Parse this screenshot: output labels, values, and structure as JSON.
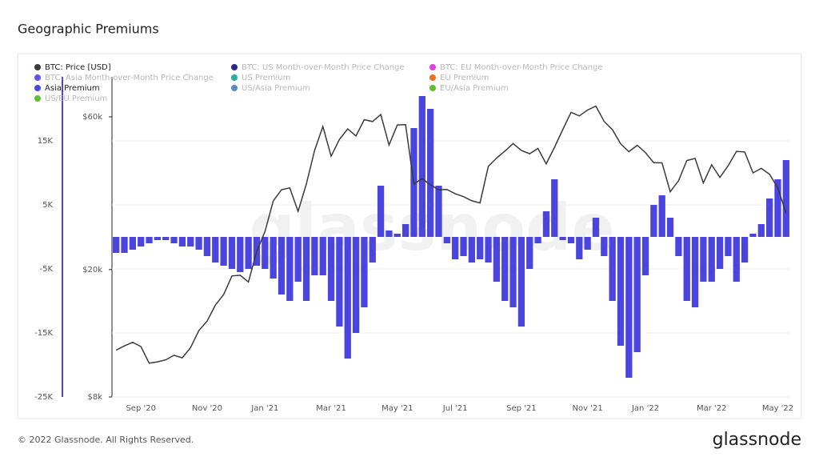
{
  "title": "Geographic Premiums",
  "footer": "© 2022 Glassnode. All Rights Reserved.",
  "logo": "glassnode",
  "watermark": "glassnode",
  "chart_data": {
    "type": "combo",
    "categories": [
      null,
      null,
      null,
      "Sep '20",
      null,
      null,
      null,
      null,
      null,
      null,
      null,
      "Nov '20",
      null,
      null,
      null,
      null,
      null,
      null,
      "Jan '21",
      null,
      null,
      null,
      null,
      null,
      null,
      null,
      "Mar '21",
      null,
      null,
      null,
      null,
      null,
      null,
      null,
      "May '21",
      null,
      null,
      null,
      null,
      null,
      null,
      "Jul '21",
      null,
      null,
      null,
      null,
      null,
      null,
      null,
      "Sep '21",
      null,
      null,
      null,
      null,
      null,
      null,
      null,
      "Nov '21",
      null,
      null,
      null,
      null,
      null,
      null,
      "Jan '22",
      null,
      null,
      null,
      null,
      null,
      null,
      null,
      "Mar '22",
      null,
      null,
      null,
      null,
      null,
      null,
      null,
      "May '22",
      null
    ],
    "ylim": [
      -25000,
      25000
    ],
    "yticks": [
      {
        "value": -25000,
        "label": "-25K"
      },
      {
        "value": -15000,
        "label": "-15K"
      },
      {
        "value": -5000,
        "label": "-5K"
      },
      {
        "value": 5000,
        "label": "5K"
      },
      {
        "value": 15000,
        "label": "15K"
      }
    ],
    "y2lim": [
      8000,
      80000
    ],
    "y2scale": "log",
    "y2ticks": [
      {
        "value": 8000,
        "label": "$8k"
      },
      {
        "value": 20000,
        "label": "$20k"
      },
      {
        "value": 60000,
        "label": "$60k"
      }
    ],
    "grid": true,
    "series": [
      {
        "name": "BTC: Price [USD]",
        "color": "#3a3a3a",
        "type": "line",
        "axis": "y2",
        "visible": true,
        "values": [
          11200,
          11550,
          11850,
          11500,
          10200,
          10300,
          10450,
          10800,
          10600,
          11400,
          12900,
          13800,
          15500,
          16700,
          19100,
          19200,
          18300,
          22800,
          26300,
          32800,
          35500,
          36000,
          30400,
          37000,
          47200,
          56000,
          45200,
          51000,
          55000,
          52300,
          58800,
          58000,
          61000,
          49000,
          56600,
          56700,
          37000,
          38500,
          36800,
          35500,
          35600,
          34500,
          33800,
          32800,
          32300,
          42000,
          44600,
          46900,
          49500,
          47100,
          46000,
          47800,
          42800,
          48200,
          54700,
          62000,
          60400,
          63000,
          64800,
          58100,
          54700,
          49400,
          46700,
          48900,
          46400,
          43100,
          43100,
          35000,
          37900,
          43800,
          44500,
          37300,
          42500,
          38800,
          42200,
          46800,
          46600,
          40100,
          41400,
          39700,
          36000,
          30000
        ]
      },
      {
        "name": "BTC: US Month-over-Month Price Change",
        "color": "#2b2a8c",
        "visible": false
      },
      {
        "name": "BTC: EU Month-over-Month Price Change",
        "color": "#e040e0",
        "visible": false
      },
      {
        "name": "BTC: Asia Month-over-Month Price Change",
        "color": "#5b54f0",
        "visible": false
      },
      {
        "name": "US Premium",
        "color": "#22b39a",
        "visible": false
      },
      {
        "name": "EU Premium",
        "color": "#f07020",
        "visible": false
      },
      {
        "name": "Asia Premium",
        "color": "#4b45e0",
        "type": "bar",
        "visible": true,
        "values": [
          -2500,
          -2500,
          -2000,
          -1500,
          -1000,
          -500,
          -500,
          -1000,
          -1500,
          -1500,
          -2000,
          -3000,
          -4000,
          -4500,
          -5000,
          -5500,
          -5000,
          -4500,
          -5000,
          -6500,
          -9000,
          -10000,
          -7000,
          -10000,
          -6000,
          -6000,
          -10000,
          -14000,
          -19000,
          -15000,
          -11000,
          -4000,
          8000,
          1000,
          500,
          2000,
          17000,
          22000,
          20000,
          8000,
          -1000,
          -3500,
          -3000,
          -4000,
          -3500,
          -4000,
          -7000,
          -10000,
          -11000,
          -14000,
          -5000,
          -1000,
          4000,
          9000,
          -500,
          -1000,
          -3500,
          -2000,
          3000,
          -3000,
          -10000,
          -17000,
          -22000,
          -18000,
          -6000,
          5000,
          6500,
          3000,
          -3000,
          -10000,
          -11000,
          -7000,
          -7000,
          -5000,
          -3000,
          -7000,
          -4000,
          500,
          2000,
          6000,
          9000,
          12000
        ]
      },
      {
        "name": "US/Asia Premium",
        "color": "#5a8ac6",
        "visible": false
      },
      {
        "name": "EU/Asia Premium",
        "color": "#5cc030",
        "visible": false
      },
      {
        "name": "US/EU Premium",
        "color": "#5cc030",
        "visible": false
      }
    ]
  }
}
